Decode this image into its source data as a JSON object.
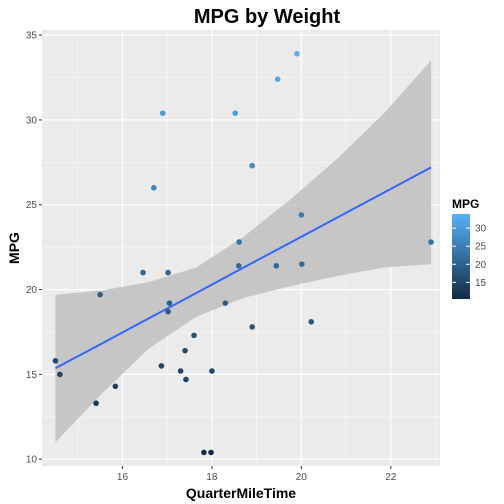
{
  "chart_data": {
    "type": "scatter",
    "title": "MPG by Weight",
    "xlabel": "QuarterMileTime",
    "ylabel": "MPG",
    "xlim": [
      14.2,
      23.1
    ],
    "ylim": [
      9.6,
      35.3
    ],
    "x_ticks": [
      16,
      18,
      20,
      22
    ],
    "y_ticks": [
      10,
      15,
      20,
      25,
      30,
      35
    ],
    "grid": true,
    "legend": {
      "title": "MPG",
      "position": "right",
      "labels": [
        15,
        20,
        25,
        30
      ],
      "color_low": "#132B43",
      "color_high": "#56B1F7",
      "range": [
        10.4,
        33.9
      ]
    },
    "colors": {
      "panel_bg": "#ebebeb",
      "grid_major": "#ffffff",
      "trend_line": "#3366ff",
      "confidence_band": "#bfbfbf"
    },
    "points": [
      {
        "x": 16.46,
        "y": 21.0
      },
      {
        "x": 17.02,
        "y": 21.0
      },
      {
        "x": 18.61,
        "y": 22.8
      },
      {
        "x": 19.44,
        "y": 21.4
      },
      {
        "x": 17.02,
        "y": 18.7
      },
      {
        "x": 20.22,
        "y": 18.1
      },
      {
        "x": 15.84,
        "y": 14.3
      },
      {
        "x": 20.0,
        "y": 24.4
      },
      {
        "x": 22.9,
        "y": 22.8
      },
      {
        "x": 18.3,
        "y": 19.2
      },
      {
        "x": 18.9,
        "y": 17.8
      },
      {
        "x": 17.4,
        "y": 16.4
      },
      {
        "x": 17.6,
        "y": 17.3
      },
      {
        "x": 18.0,
        "y": 15.2
      },
      {
        "x": 17.98,
        "y": 10.4
      },
      {
        "x": 17.82,
        "y": 10.4
      },
      {
        "x": 17.42,
        "y": 14.7
      },
      {
        "x": 19.47,
        "y": 32.4
      },
      {
        "x": 18.52,
        "y": 30.4
      },
      {
        "x": 19.9,
        "y": 33.9
      },
      {
        "x": 20.01,
        "y": 21.5
      },
      {
        "x": 16.87,
        "y": 15.5
      },
      {
        "x": 17.3,
        "y": 15.2
      },
      {
        "x": 15.41,
        "y": 13.3
      },
      {
        "x": 17.05,
        "y": 19.2
      },
      {
        "x": 18.9,
        "y": 27.3
      },
      {
        "x": 16.7,
        "y": 26.0
      },
      {
        "x": 16.9,
        "y": 30.4
      },
      {
        "x": 14.5,
        "y": 15.8
      },
      {
        "x": 15.5,
        "y": 19.7
      },
      {
        "x": 14.6,
        "y": 15.0
      },
      {
        "x": 18.6,
        "y": 21.4
      }
    ],
    "trend": {
      "method": "lm",
      "x": [
        14.5,
        15.55,
        16.6,
        17.65,
        18.7,
        19.75,
        20.8,
        21.85,
        22.9
      ],
      "y": [
        15.36,
        16.84,
        18.32,
        19.8,
        21.28,
        22.76,
        24.24,
        25.72,
        27.2
      ],
      "lower": [
        11.0,
        13.9,
        16.55,
        18.4,
        19.5,
        20.2,
        20.8,
        21.3,
        21.5
      ],
      "upper": [
        19.7,
        19.95,
        20.45,
        21.3,
        23.1,
        25.3,
        27.7,
        30.4,
        33.5
      ]
    }
  }
}
